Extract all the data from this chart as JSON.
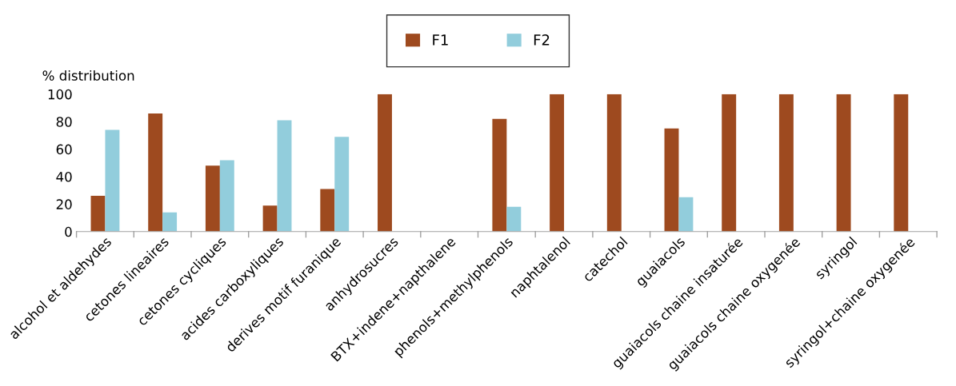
{
  "chart_data": {
    "type": "bar",
    "ylabel": "% distribution",
    "categories": [
      "alcohol et aldehydes",
      "cetones lineaires",
      "cetones cycliques",
      "acides carboxyliques",
      "derives motif furanique",
      "anhydrosucres",
      "BTX+indene+napthalene",
      "phenols+methylphenols",
      "naphtalenol",
      "catechol",
      "guaiacols",
      "guaiacols chaine insaturée",
      "guaiacols chaine oxygenée",
      "syringol",
      "syringol+chaine oxygenée"
    ],
    "series": [
      {
        "name": "F1",
        "color": "#9e4a1f",
        "values": [
          26,
          86,
          48,
          19,
          31,
          100,
          null,
          82,
          100,
          100,
          75,
          100,
          100,
          100,
          100
        ]
      },
      {
        "name": "F2",
        "color": "#92cddc",
        "values": [
          74,
          14,
          52,
          81,
          69,
          null,
          null,
          18,
          null,
          null,
          25,
          null,
          null,
          null,
          null
        ]
      }
    ],
    "ylim": [
      0,
      100
    ],
    "yticks": [
      0,
      20,
      40,
      60,
      80,
      100
    ],
    "grid": false,
    "legend": "top"
  }
}
